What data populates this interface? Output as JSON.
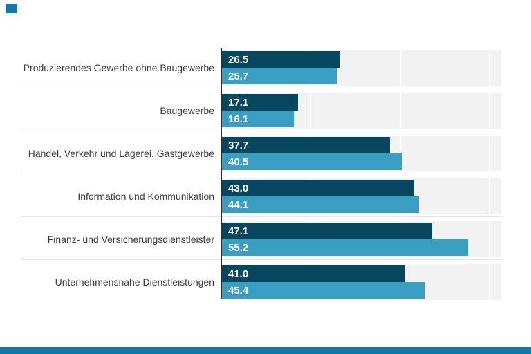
{
  "branding": {
    "corner_mark_color": "#1478a6",
    "footer_bar_color": "#1478a6"
  },
  "style_colors": {
    "primary_bar": "#07465f",
    "secondary_bar": "#3a9dc2",
    "row_band": "#f2f2f2",
    "axis_line": "#2f2f2f",
    "divider": "#e7e7e7",
    "value_text": "#ffffff",
    "label_text": "#3d3d3d"
  },
  "chart_data": {
    "type": "bar",
    "orientation": "horizontal",
    "title": "",
    "xlabel": "",
    "ylabel": "",
    "xlim": [
      0,
      62.6
    ],
    "gridline_values": [
      20,
      40,
      60
    ],
    "grid": "on",
    "legend": "none",
    "categories": [
      "Produzierendes Gewerbe ohne Baugewerbe",
      "Baugewerbe",
      "Handel, Verkehr und Lagerei, Gastgewerbe",
      "Information und Kommunikation",
      "Finanz- und Versicherungsdienstleister",
      "Unternehmensnahe Dienstleistungen"
    ],
    "series": [
      {
        "name": "primary-dark",
        "values": [
          26.5,
          17.1,
          37.7,
          43.0,
          47.1,
          41.0
        ]
      },
      {
        "name": "secondary-light",
        "values": [
          25.7,
          16.1,
          40.5,
          44.1,
          55.2,
          45.4
        ]
      }
    ],
    "rows": [
      {
        "label": "Produzierendes Gewerbe ohne Baugewerbe",
        "primary": "26.5",
        "secondary": "25.7"
      },
      {
        "label": "Baugewerbe",
        "primary": "17.1",
        "secondary": "16.1"
      },
      {
        "label": "Handel, Verkehr und Lagerei, Gastgewerbe",
        "primary": "37.7",
        "secondary": "40.5"
      },
      {
        "label": "Information und Kommunikation",
        "primary": "43.0",
        "secondary": "44.1"
      },
      {
        "label": "Finanz- und Versicherungsdienstleister",
        "primary": "47.1",
        "secondary": "55.2"
      },
      {
        "label": "Unternehmensnahe Dienstleistungen",
        "primary": "41.0",
        "secondary": "45.4"
      }
    ]
  }
}
